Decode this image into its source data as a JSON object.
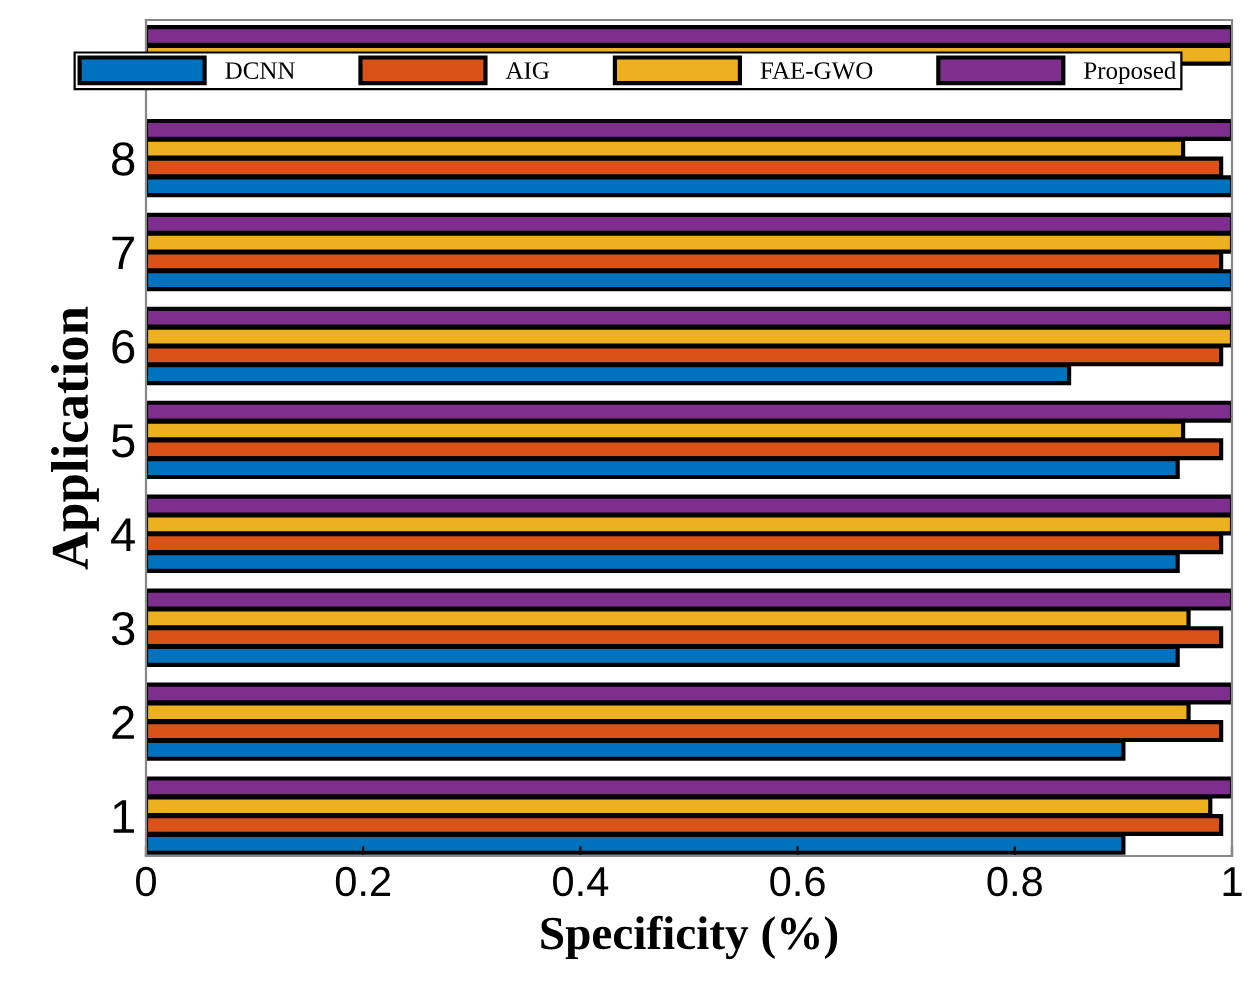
{
  "chart_data": {
    "type": "bar",
    "orientation": "horizontal",
    "xlabel": "Specificity (%)",
    "ylabel": "Application",
    "categories": [
      null,
      "8",
      "7",
      "6",
      "5",
      "4",
      "3",
      "2",
      "1"
    ],
    "series": [
      {
        "name": "DCNN",
        "color": "#0072bd",
        "values": [
          null,
          1.0,
          1.0,
          0.85,
          0.95,
          0.95,
          0.95,
          0.9,
          0.9
        ]
      },
      {
        "name": "AIG",
        "color": "#d95319",
        "values": [
          null,
          0.99,
          0.99,
          0.99,
          0.99,
          0.99,
          0.99,
          0.99,
          0.99
        ]
      },
      {
        "name": "FAE-GWO",
        "color": "#edb120",
        "values": [
          1.0,
          0.955,
          1.0,
          1.0,
          0.955,
          1.0,
          0.96,
          0.96,
          0.98
        ]
      },
      {
        "name": "Proposed",
        "color": "#7e2f8e",
        "values": [
          1.0,
          1.0,
          1.0,
          1.0,
          1.0,
          1.0,
          1.0,
          1.0,
          1.0
        ]
      }
    ],
    "xlim": [
      0,
      1
    ],
    "xticks": [
      0,
      0.2,
      0.4,
      0.6,
      0.8,
      1
    ],
    "legend": "top",
    "grid": false
  }
}
